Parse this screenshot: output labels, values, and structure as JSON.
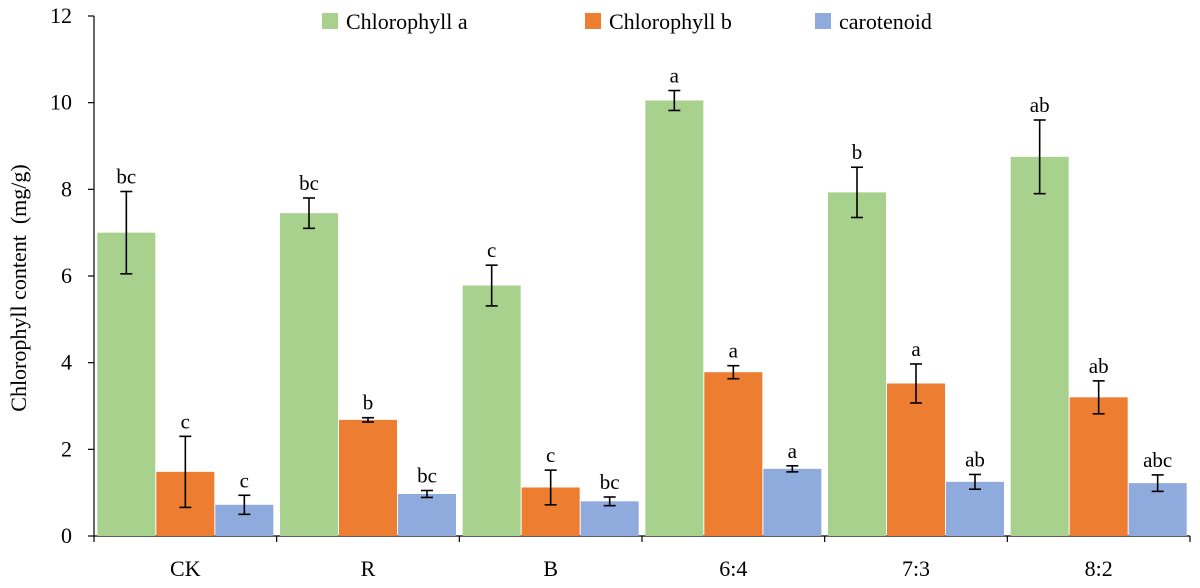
{
  "chart_data": {
    "type": "bar",
    "title": "",
    "xlabel": "",
    "ylabel": "Chlorophyll content  (mg/g)",
    "ylim": [
      0,
      12
    ],
    "yticks": [
      "0",
      "2",
      "4",
      "6",
      "8",
      "10",
      "12"
    ],
    "grid": false,
    "legend_position": "top",
    "categories": [
      "CK",
      "R",
      "B",
      "6:4",
      "7:3",
      "8:2"
    ],
    "series": [
      {
        "name": "Chlorophyll a",
        "color": "#a9d18e",
        "values": [
          7.0,
          7.45,
          5.78,
          10.05,
          7.93,
          8.75
        ],
        "errors": [
          0.95,
          0.35,
          0.47,
          0.23,
          0.58,
          0.85
        ],
        "labels": [
          "bc",
          "bc",
          "c",
          "a",
          "b",
          "ab"
        ]
      },
      {
        "name": "Chlorophyll b",
        "color": "#ed7d31",
        "values": [
          1.48,
          2.68,
          1.12,
          3.78,
          3.52,
          3.2
        ],
        "errors": [
          0.82,
          0.05,
          0.4,
          0.15,
          0.45,
          0.38
        ],
        "labels": [
          "c",
          "b",
          "c",
          "a",
          "a",
          "ab"
        ]
      },
      {
        "name": "carotenoid",
        "color": "#8faadc",
        "values": [
          0.72,
          0.97,
          0.8,
          1.55,
          1.25,
          1.22
        ],
        "errors": [
          0.22,
          0.08,
          0.1,
          0.07,
          0.17,
          0.19
        ],
        "labels": [
          "c",
          "bc",
          "bc",
          "a",
          "ab",
          "abc"
        ]
      }
    ]
  }
}
